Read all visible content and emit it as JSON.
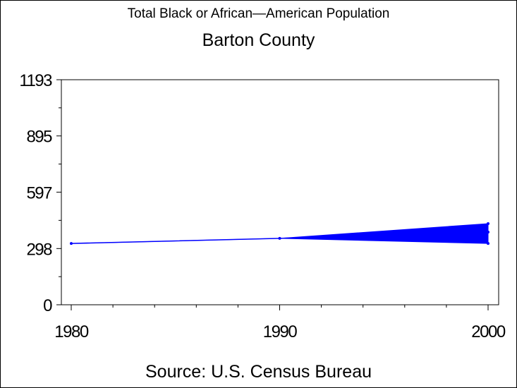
{
  "chart_data": {
    "type": "line",
    "title": "Total Black or African—American Population",
    "subtitle": "Barton County",
    "source": "Source: U.S. Census Bureau",
    "x": [
      1980,
      1990,
      2000
    ],
    "xlim": [
      1980,
      2000
    ],
    "xticks": [
      "1980",
      "1990",
      "2000"
    ],
    "ylim": [
      0,
      1193
    ],
    "yticks": [
      "0",
      "298",
      "597",
      "895",
      "1193"
    ],
    "series": [
      {
        "values": [
          325,
          352,
          385
        ],
        "band_low": [
          325,
          352,
          325
        ],
        "band_high": [
          325,
          352,
          430
        ]
      }
    ],
    "grid": false,
    "colors": {
      "series": "#0000ff",
      "axes": "#000000"
    }
  }
}
